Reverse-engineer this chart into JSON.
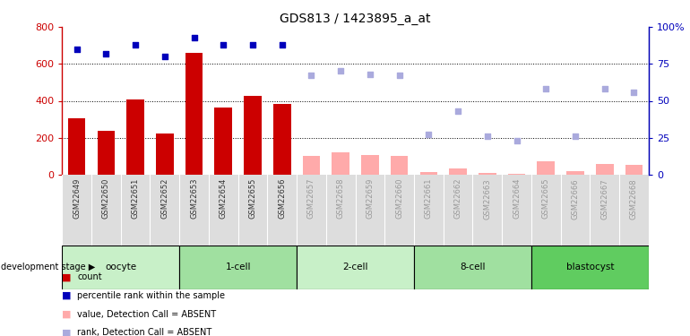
{
  "title": "GDS813 / 1423895_a_at",
  "samples": [
    "GSM22649",
    "GSM22650",
    "GSM22651",
    "GSM22652",
    "GSM22653",
    "GSM22654",
    "GSM22655",
    "GSM22656",
    "GSM22657",
    "GSM22658",
    "GSM22659",
    "GSM22660",
    "GSM22661",
    "GSM22662",
    "GSM22663",
    "GSM22664",
    "GSM22665",
    "GSM22666",
    "GSM22667",
    "GSM22668"
  ],
  "stages": [
    {
      "label": "oocyte",
      "start": 0,
      "end": 4,
      "color": "#c8f0c8"
    },
    {
      "label": "1-cell",
      "start": 4,
      "end": 8,
      "color": "#a0e0a0"
    },
    {
      "label": "2-cell",
      "start": 8,
      "end": 12,
      "color": "#c8f0c8"
    },
    {
      "label": "8-cell",
      "start": 12,
      "end": 16,
      "color": "#a0e0a0"
    },
    {
      "label": "blastocyst",
      "start": 16,
      "end": 20,
      "color": "#60cc60"
    }
  ],
  "count_values": [
    305,
    240,
    405,
    225,
    660,
    365,
    425,
    385,
    100,
    120,
    105,
    100,
    15,
    35,
    10,
    5,
    75,
    20,
    60,
    55
  ],
  "count_absent": [
    false,
    false,
    false,
    false,
    false,
    false,
    false,
    false,
    true,
    true,
    true,
    true,
    true,
    true,
    true,
    true,
    true,
    true,
    true,
    true
  ],
  "rank_values": [
    85,
    82,
    88,
    80,
    93,
    88,
    88,
    88,
    67,
    70,
    68,
    67,
    27,
    43,
    26,
    23,
    58,
    26,
    58,
    56
  ],
  "rank_absent": [
    false,
    false,
    false,
    false,
    false,
    false,
    false,
    false,
    true,
    true,
    true,
    true,
    true,
    true,
    true,
    true,
    true,
    true,
    true,
    true
  ],
  "ylim_left": [
    0,
    800
  ],
  "ylim_right": [
    0,
    100
  ],
  "yticks_left": [
    0,
    200,
    400,
    600,
    800
  ],
  "yticks_right": [
    0,
    25,
    50,
    75,
    100
  ],
  "bar_color_present": "#cc0000",
  "bar_color_absent": "#ffaaaa",
  "dot_color_present": "#0000bb",
  "dot_color_absent": "#aaaadd",
  "grid_lines": [
    200,
    400,
    600
  ],
  "stage_label_text": "development stage"
}
